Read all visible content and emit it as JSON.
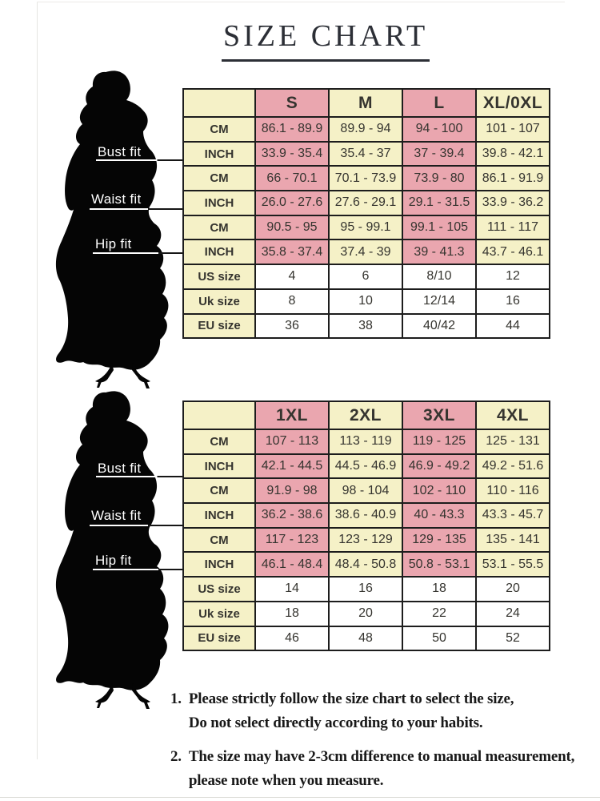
{
  "title": "SIZE CHART",
  "figure_labels": [
    "Bust fit",
    "Waist fit",
    "Hip fit"
  ],
  "colors": {
    "pink_cell": "#eaa6af",
    "yellow_cell": "#f5f1c7",
    "table_border": "#1d1d1d",
    "silhouette": "#050505",
    "title_text": "#2c2f36"
  },
  "chart_data": [
    {
      "type": "table",
      "columns": [
        "",
        "S",
        "M",
        "L",
        "XL/0XL"
      ],
      "rows": [
        {
          "section": "bust",
          "label": "CM",
          "values": [
            "86.1 - 89.9",
            "89.9 - 94",
            "94 - 100",
            "101 - 107"
          ]
        },
        {
          "section": "bust",
          "label": "INCH",
          "values": [
            "33.9 - 35.4",
            "35.4 - 37",
            "37 - 39.4",
            "39.8 - 42.1"
          ]
        },
        {
          "section": "waist",
          "label": "CM",
          "values": [
            "66 - 70.1",
            "70.1 - 73.9",
            "73.9 - 80",
            "86.1 - 91.9"
          ]
        },
        {
          "section": "waist",
          "label": "INCH",
          "values": [
            "26.0 - 27.6",
            "27.6 - 29.1",
            "29.1 - 31.5",
            "33.9 - 36.2"
          ]
        },
        {
          "section": "hip",
          "label": "CM",
          "values": [
            "90.5 - 95",
            "95 - 99.1",
            "99.1 - 105",
            "111 - 117"
          ]
        },
        {
          "section": "hip",
          "label": "INCH",
          "values": [
            "35.8 - 37.4",
            "37.4 - 39",
            "39 - 41.3",
            "43.7 - 46.1"
          ]
        },
        {
          "section": "size",
          "label": "US size",
          "values": [
            "4",
            "6",
            "8/10",
            "12"
          ]
        },
        {
          "section": "size",
          "label": "Uk size",
          "values": [
            "8",
            "10",
            "12/14",
            "16"
          ]
        },
        {
          "section": "size",
          "label": "EU size",
          "values": [
            "36",
            "38",
            "40/42",
            "44"
          ]
        }
      ]
    },
    {
      "type": "table",
      "columns": [
        "",
        "1XL",
        "2XL",
        "3XL",
        "4XL"
      ],
      "rows": [
        {
          "section": "bust",
          "label": "CM",
          "values": [
            "107 - 113",
            "113 - 119",
            "119 - 125",
            "125 - 131"
          ]
        },
        {
          "section": "bust",
          "label": "INCH",
          "values": [
            "42.1 - 44.5",
            "44.5 - 46.9",
            "46.9 - 49.2",
            "49.2 - 51.6"
          ]
        },
        {
          "section": "waist",
          "label": "CM",
          "values": [
            "91.9 - 98",
            "98 - 104",
            "102 - 110",
            "110 - 116"
          ]
        },
        {
          "section": "waist",
          "label": "INCH",
          "values": [
            "36.2 - 38.6",
            "38.6 - 40.9",
            "40 - 43.3",
            "43.3 - 45.7"
          ]
        },
        {
          "section": "hip",
          "label": "CM",
          "values": [
            "117 - 123",
            "123 - 129",
            "129 - 135",
            "135 - 141"
          ]
        },
        {
          "section": "hip",
          "label": "INCH",
          "values": [
            "46.1 - 48.4",
            "48.4 - 50.8",
            "50.8 - 53.1",
            "53.1 - 55.5"
          ]
        },
        {
          "section": "size",
          "label": "US size",
          "values": [
            "14",
            "16",
            "18",
            "20"
          ]
        },
        {
          "section": "size",
          "label": "Uk size",
          "values": [
            "18",
            "20",
            "22",
            "24"
          ]
        },
        {
          "section": "size",
          "label": "EU size",
          "values": [
            "46",
            "48",
            "50",
            "52"
          ]
        }
      ]
    }
  ],
  "notes": [
    {
      "num": "1.",
      "lines": [
        "Please strictly follow the size chart to select the size,",
        "Do not select directly according to your habits."
      ]
    },
    {
      "num": "2.",
      "lines": [
        "The size may have 2-3cm difference  to manual measurement,",
        "please note when you measure."
      ]
    }
  ]
}
